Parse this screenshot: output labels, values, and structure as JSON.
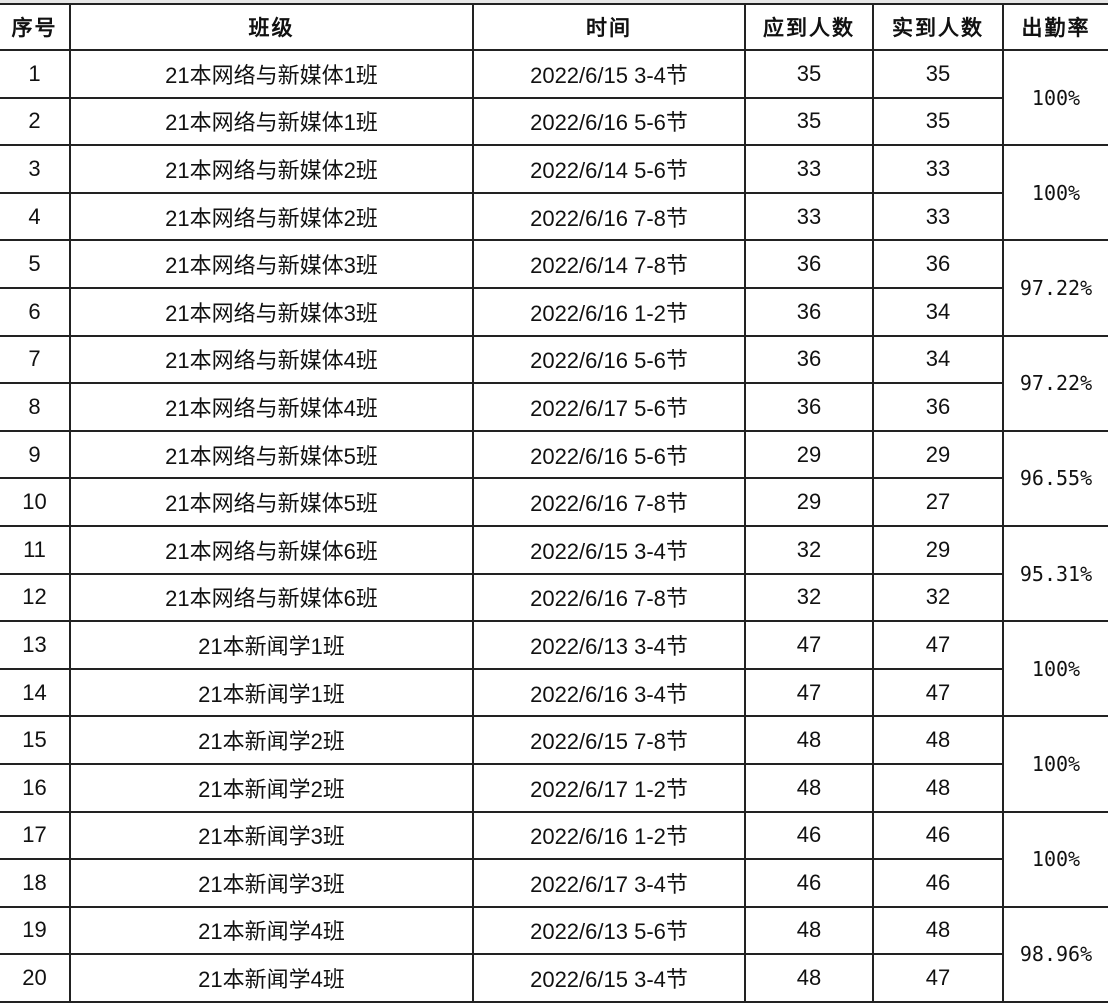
{
  "headers": [
    "序号",
    "班级",
    "时间",
    "应到人数",
    "实到人数",
    "出勤率"
  ],
  "rows": [
    {
      "no": "1",
      "class": "21本网络与新媒体1班",
      "time": "2022/6/15 3-4节",
      "expected": "35",
      "actual": "35"
    },
    {
      "no": "2",
      "class": "21本网络与新媒体1班",
      "time": "2022/6/16 5-6节",
      "expected": "35",
      "actual": "35"
    },
    {
      "no": "3",
      "class": "21本网络与新媒体2班",
      "time": "2022/6/14 5-6节",
      "expected": "33",
      "actual": "33"
    },
    {
      "no": "4",
      "class": "21本网络与新媒体2班",
      "time": "2022/6/16 7-8节",
      "expected": "33",
      "actual": "33"
    },
    {
      "no": "5",
      "class": "21本网络与新媒体3班",
      "time": "2022/6/14 7-8节",
      "expected": "36",
      "actual": "36"
    },
    {
      "no": "6",
      "class": "21本网络与新媒体3班",
      "time": "2022/6/16 1-2节",
      "expected": "36",
      "actual": "34"
    },
    {
      "no": "7",
      "class": "21本网络与新媒体4班",
      "time": "2022/6/16 5-6节",
      "expected": "36",
      "actual": "34"
    },
    {
      "no": "8",
      "class": "21本网络与新媒体4班",
      "time": "2022/6/17 5-6节",
      "expected": "36",
      "actual": "36"
    },
    {
      "no": "9",
      "class": "21本网络与新媒体5班",
      "time": "2022/6/16 5-6节",
      "expected": "29",
      "actual": "29"
    },
    {
      "no": "10",
      "class": "21本网络与新媒体5班",
      "time": "2022/6/16 7-8节",
      "expected": "29",
      "actual": "27"
    },
    {
      "no": "11",
      "class": "21本网络与新媒体6班",
      "time": "2022/6/15 3-4节",
      "expected": "32",
      "actual": "29"
    },
    {
      "no": "12",
      "class": "21本网络与新媒体6班",
      "time": "2022/6/16 7-8节",
      "expected": "32",
      "actual": "32"
    },
    {
      "no": "13",
      "class": "21本新闻学1班",
      "time": "2022/6/13 3-4节",
      "expected": "47",
      "actual": "47"
    },
    {
      "no": "14",
      "class": "21本新闻学1班",
      "time": "2022/6/16 3-4节",
      "expected": "47",
      "actual": "47"
    },
    {
      "no": "15",
      "class": "21本新闻学2班",
      "time": "2022/6/15 7-8节",
      "expected": "48",
      "actual": "48"
    },
    {
      "no": "16",
      "class": "21本新闻学2班",
      "time": "2022/6/17 1-2节",
      "expected": "48",
      "actual": "48"
    },
    {
      "no": "17",
      "class": "21本新闻学3班",
      "time": "2022/6/16 1-2节",
      "expected": "46",
      "actual": "46"
    },
    {
      "no": "18",
      "class": "21本新闻学3班",
      "time": "2022/6/17 3-4节",
      "expected": "46",
      "actual": "46"
    },
    {
      "no": "19",
      "class": "21本新闻学4班",
      "time": "2022/6/13 5-6节",
      "expected": "48",
      "actual": "48"
    },
    {
      "no": "20",
      "class": "21本新闻学4班",
      "time": "2022/6/15 3-4节",
      "expected": "48",
      "actual": "47"
    }
  ],
  "rates": [
    "100%",
    "100%",
    "97.22%",
    "97.22%",
    "96.55%",
    "95.31%",
    "100%",
    "100%",
    "100%",
    "98.96%"
  ]
}
